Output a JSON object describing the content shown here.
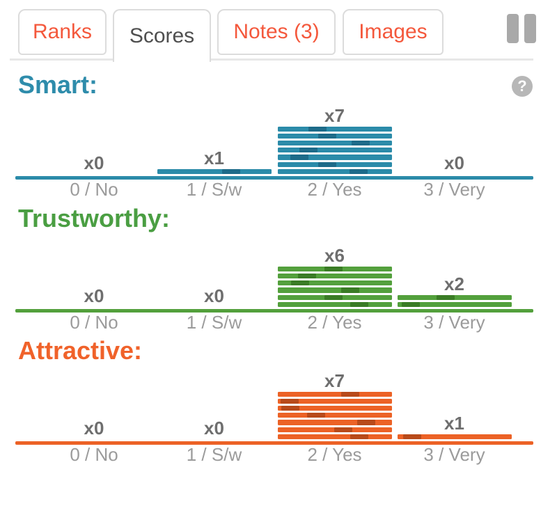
{
  "tabs": {
    "items": [
      {
        "label": "Ranks",
        "active": false
      },
      {
        "label": "Scores",
        "active": true
      },
      {
        "label": "Notes (3)",
        "active": false
      },
      {
        "label": "Images",
        "active": false
      }
    ]
  },
  "header": {
    "pause_icon": "pause-icon"
  },
  "help": {
    "glyph": "?"
  },
  "colors": {
    "tab_text": "#f4583c",
    "tab_active_text": "#4f4f4f",
    "tab_border": "#dcdcdc",
    "pause_gray": "#a9a9a9",
    "help_badge_bg": "#b7b7b7",
    "count_text": "#6e6e6e",
    "category_text": "#9b9b9b"
  },
  "chart_data": [
    {
      "type": "bar",
      "title": "Smart:",
      "title_color": "#2e8cab",
      "bar_color": "#2b8ba9",
      "mark_color": "#1d6b89",
      "categories": [
        "0 / No",
        "1 / S/w",
        "2 / Yes",
        "3 / Very"
      ],
      "values": [
        0,
        1,
        7,
        0
      ],
      "count_labels": [
        "x0",
        "x1",
        "x7",
        "x0"
      ],
      "stripe_marks": [
        [],
        [
          0.57
        ],
        [
          0.27,
          0.355,
          0.65,
          0.19,
          0.115,
          0.355,
          0.63
        ],
        []
      ],
      "xlabel": "",
      "ylabel": "",
      "ylim": [
        0,
        8
      ],
      "grid": false,
      "legend": false
    },
    {
      "type": "bar",
      "title": "Trustworthy:",
      "title_color": "#4a9e42",
      "bar_color": "#53a03c",
      "mark_color": "#3a7c25",
      "categories": [
        "0 / No",
        "1 / S/w",
        "2 / Yes",
        "3 / Very"
      ],
      "values": [
        0,
        0,
        6,
        2
      ],
      "count_labels": [
        "x0",
        "x0",
        "x6",
        "x2"
      ],
      "stripe_marks": [
        [],
        [],
        [
          0.41,
          0.18,
          0.12,
          0.555,
          0.41,
          0.635
        ],
        [
          0.345,
          0.04
        ]
      ],
      "xlabel": "",
      "ylabel": "",
      "ylim": [
        0,
        8
      ],
      "grid": false,
      "legend": false
    },
    {
      "type": "bar",
      "title": "Attractive:",
      "title_color": "#f0622a",
      "bar_color": "#ec6226",
      "mark_color": "#b84a1a",
      "categories": [
        "0 / No",
        "1 / S/w",
        "2 / Yes",
        "3 / Very"
      ],
      "values": [
        0,
        0,
        7,
        1
      ],
      "count_labels": [
        "x0",
        "x0",
        "x7",
        "x1"
      ],
      "stripe_marks": [
        [],
        [],
        [
          0.555,
          0.03,
          0.035,
          0.26,
          0.7,
          0.495,
          0.64
        ],
        [
          0.05
        ]
      ],
      "xlabel": "",
      "ylabel": "",
      "ylim": [
        0,
        8
      ],
      "grid": false,
      "legend": false
    }
  ]
}
